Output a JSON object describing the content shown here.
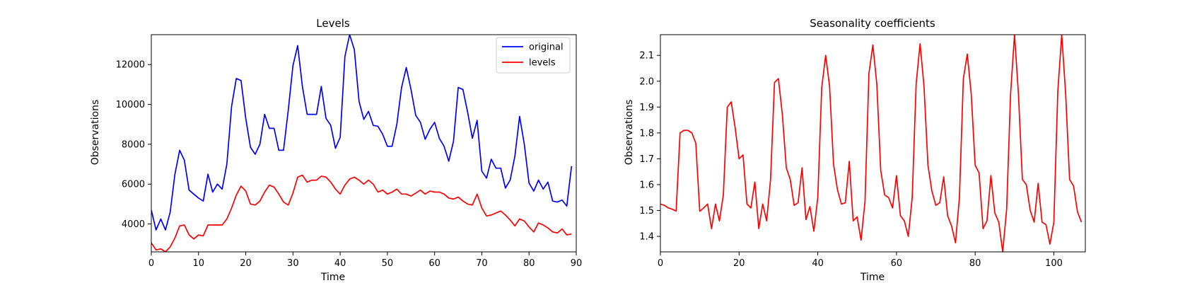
{
  "chart_data": [
    {
      "type": "line",
      "title": "Levels",
      "xlabel": "Time",
      "ylabel": "Observations",
      "xlim": [
        0,
        90
      ],
      "ylim": [
        2600,
        13500
      ],
      "xticks": [
        0,
        10,
        20,
        30,
        40,
        50,
        60,
        70,
        80,
        90
      ],
      "yticks": [
        4000,
        6000,
        8000,
        10000,
        12000
      ],
      "legend": "top-right",
      "grid": false,
      "series": [
        {
          "name": "original",
          "color": "#0000ff",
          "x_start": 0,
          "values": [
            4700,
            3700,
            4250,
            3700,
            4600,
            6500,
            7700,
            7200,
            5700,
            5500,
            5300,
            5150,
            6500,
            5600,
            6000,
            5750,
            7000,
            9900,
            11300,
            11200,
            9300,
            7850,
            7500,
            8000,
            9500,
            8800,
            8800,
            7700,
            7700,
            9700,
            11950,
            12950,
            10900,
            9500,
            9500,
            9500,
            10900,
            9300,
            8950,
            7800,
            8350,
            12400,
            13500,
            12750,
            10150,
            9250,
            9650,
            8950,
            8900,
            8500,
            7900,
            7900,
            9000,
            10850,
            11850,
            10750,
            9450,
            9100,
            8250,
            8750,
            9100,
            8300,
            7900,
            7150,
            8150,
            10850,
            10750,
            9600,
            8300,
            9200,
            6650,
            6300,
            7250,
            6800,
            6800,
            5800,
            6200,
            7400,
            9400,
            8000,
            6050,
            5650,
            6200,
            5750,
            6100,
            5150,
            5100,
            5200,
            4900,
            6900
          ]
        },
        {
          "name": "levels",
          "color": "#ff0000",
          "x_start": 0,
          "values": [
            3050,
            2700,
            2750,
            2600,
            2850,
            3300,
            3900,
            3950,
            3450,
            3250,
            3450,
            3400,
            3950,
            3950,
            3950,
            3950,
            4250,
            4800,
            5450,
            5900,
            5650,
            5000,
            4950,
            5150,
            5600,
            5950,
            5850,
            5500,
            5100,
            4950,
            5550,
            6350,
            6450,
            6100,
            6200,
            6200,
            6400,
            6350,
            6100,
            5750,
            5500,
            5950,
            6250,
            6350,
            6200,
            6000,
            6200,
            6000,
            5600,
            5700,
            5500,
            5600,
            5750,
            5500,
            5500,
            5400,
            5550,
            5700,
            5500,
            5650,
            5600,
            5600,
            5500,
            5300,
            5250,
            5350,
            5150,
            5000,
            4950,
            5500,
            4800,
            4400,
            4450,
            4550,
            4650,
            4450,
            4200,
            3900,
            4250,
            4150,
            3850,
            3600,
            4050,
            3950,
            3800,
            3600,
            3550,
            3750,
            3450,
            3500
          ]
        }
      ]
    },
    {
      "type": "line",
      "title": "Seasonality coefficients",
      "xlabel": "Time",
      "ylabel": "Observations",
      "xlim": [
        0,
        108
      ],
      "ylim": [
        1.34,
        2.18
      ],
      "xticks": [
        0,
        20,
        40,
        60,
        80,
        100
      ],
      "yticks": [
        1.4,
        1.5,
        1.6,
        1.7,
        1.8,
        1.9,
        2.0,
        2.1
      ],
      "yticklabels": [
        "1.4",
        "1.5",
        "1.6",
        "1.7",
        "1.8",
        "1.9",
        "2.0",
        "2.1"
      ],
      "grid": false,
      "series": [
        {
          "color": "#ff0000",
          "x_start": 0,
          "values": [
            1.525,
            1.52,
            1.51,
            1.505,
            1.498,
            1.8,
            1.81,
            1.81,
            1.8,
            1.76,
            1.497,
            1.51,
            1.525,
            1.43,
            1.525,
            1.46,
            1.56,
            1.9,
            1.92,
            1.82,
            1.7,
            1.715,
            1.525,
            1.51,
            1.61,
            1.43,
            1.525,
            1.46,
            1.62,
            1.995,
            2.01,
            1.87,
            1.665,
            1.62,
            1.52,
            1.53,
            1.665,
            1.465,
            1.515,
            1.42,
            1.55,
            1.975,
            2.1,
            1.98,
            1.68,
            1.58,
            1.525,
            1.53,
            1.69,
            1.46,
            1.475,
            1.385,
            1.535,
            2.03,
            2.14,
            1.99,
            1.655,
            1.56,
            1.55,
            1.51,
            1.635,
            1.48,
            1.46,
            1.4,
            1.55,
            1.99,
            2.145,
            1.98,
            1.675,
            1.575,
            1.52,
            1.53,
            1.63,
            1.48,
            1.44,
            1.375,
            1.55,
            2.01,
            2.105,
            1.95,
            1.675,
            1.645,
            1.43,
            1.46,
            1.635,
            1.49,
            1.455,
            1.34,
            1.505,
            1.95,
            2.18,
            1.95,
            1.62,
            1.6,
            1.5,
            1.455,
            1.605,
            1.455,
            1.445,
            1.37,
            1.455,
            1.96,
            2.18,
            1.95,
            1.62,
            1.595,
            1.495,
            1.455
          ]
        }
      ]
    }
  ]
}
